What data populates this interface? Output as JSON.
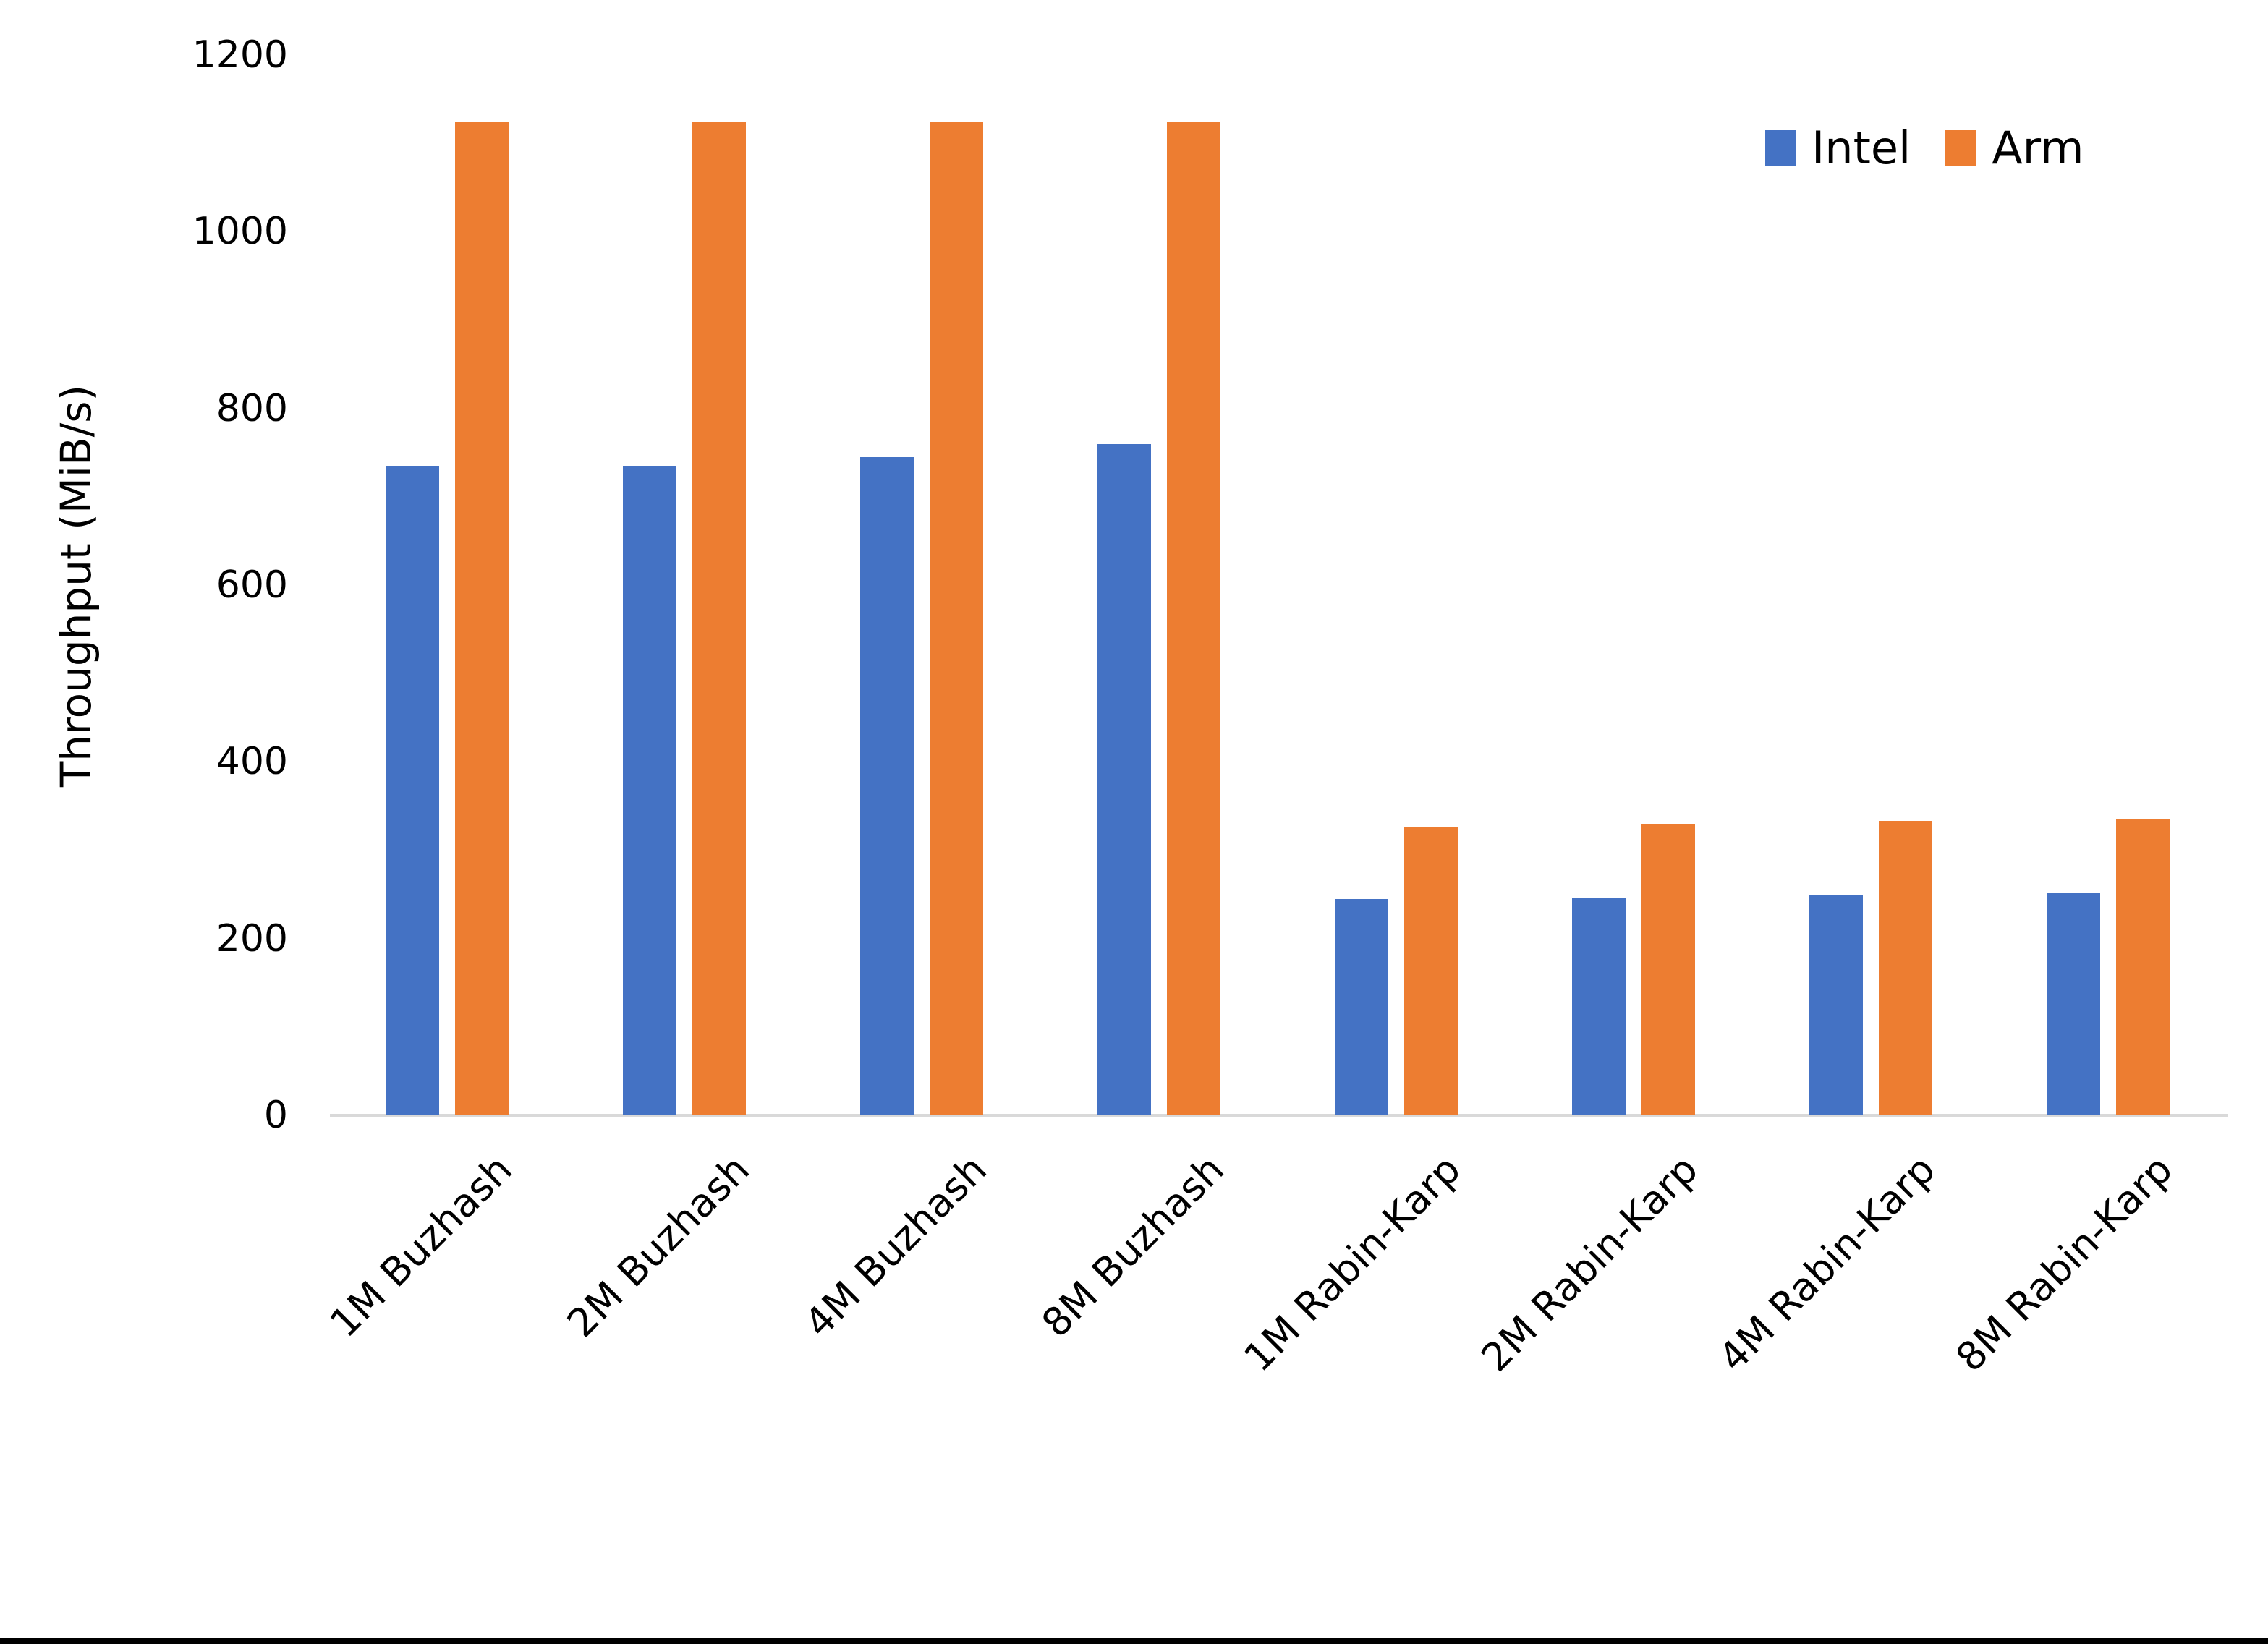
{
  "chart_data": {
    "type": "bar",
    "title": "",
    "xlabel": "",
    "ylabel": "Throughput (MiB/s)",
    "categories": [
      "1M Buzhash",
      "2M Buzhash",
      "4M Buzhash",
      "8M Buzhash",
      "1M Rabin-Karp",
      "2M Rabin-Karp",
      "4M Rabin-Karp",
      "8M Rabin-Karp"
    ],
    "series": [
      {
        "name": "Intel",
        "color": "#4472C4",
        "values": [
          735,
          735,
          745,
          760,
          245,
          246,
          249,
          251
        ]
      },
      {
        "name": "Arm",
        "color": "#ED7D31",
        "values": [
          1125,
          1125,
          1125,
          1125,
          327,
          330,
          333,
          336
        ]
      }
    ],
    "y_ticks": [
      0,
      200,
      400,
      600,
      800,
      1000,
      1200
    ],
    "ylim": [
      0,
      1200
    ],
    "grid": false,
    "legend_position": "top-right",
    "axis_line_color": "#D9D9D9",
    "text_color": "#000000"
  }
}
